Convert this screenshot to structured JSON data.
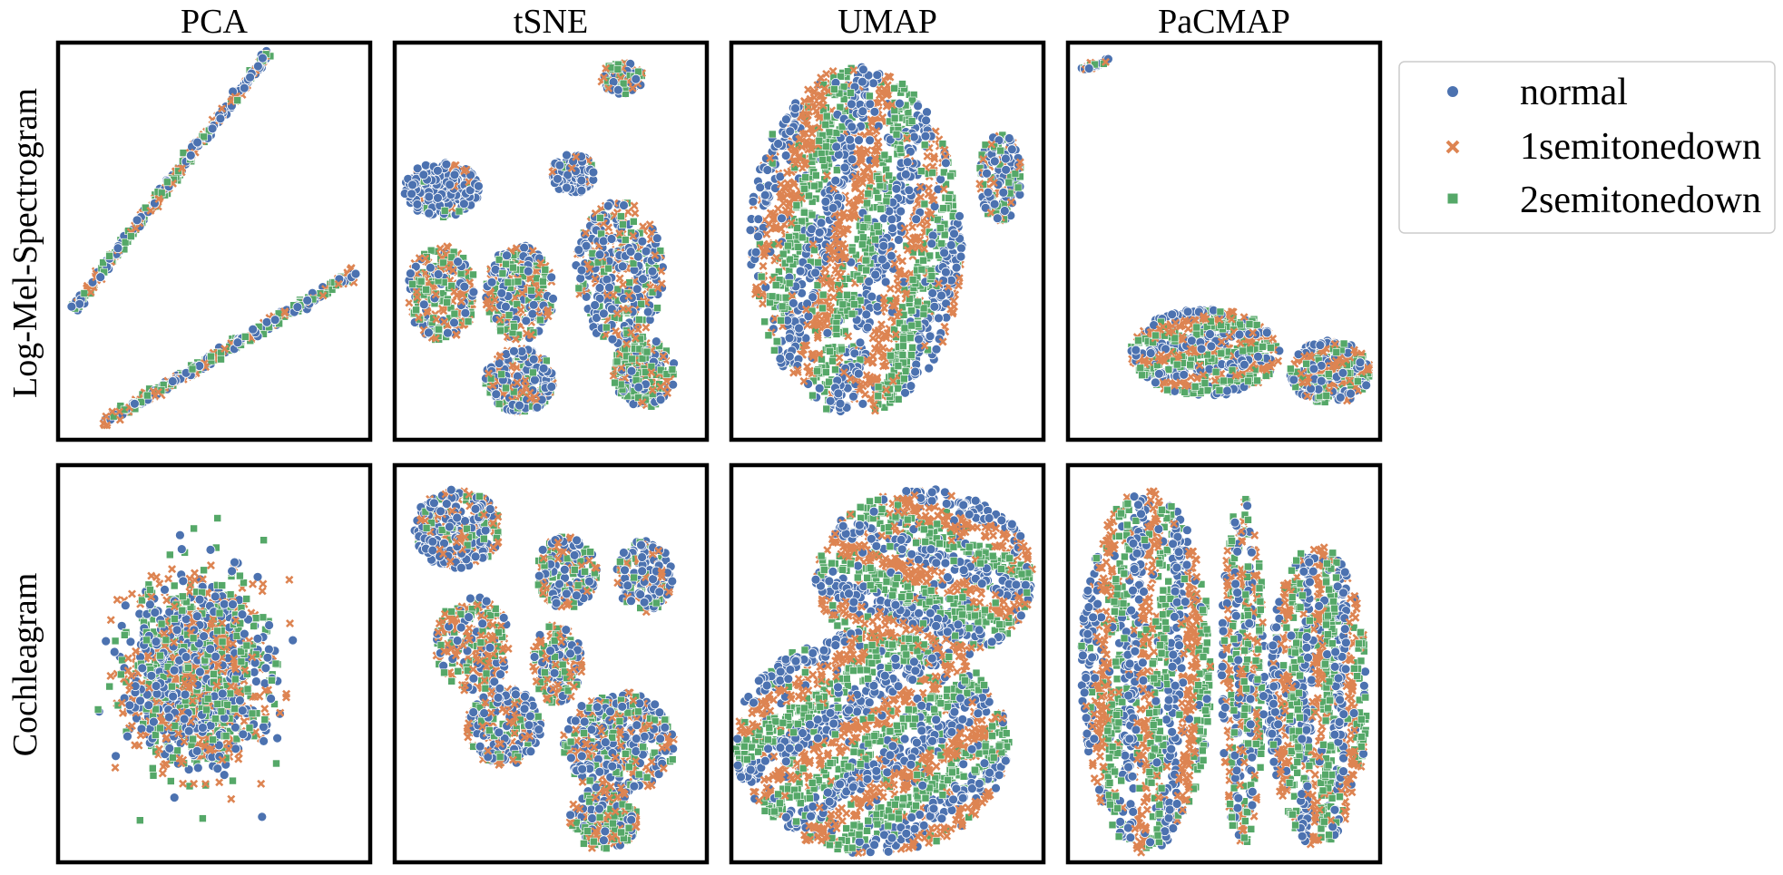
{
  "chart_data": {
    "type": "scatter",
    "column_titles": [
      "PCA",
      "tSNE",
      "UMAP",
      "PaCMAP"
    ],
    "row_labels": [
      "Log-Mel-Spectrogram",
      "Cochleagram"
    ],
    "grid": false,
    "axes_ticks": false,
    "legend": {
      "placement": "right-top",
      "entries": [
        {
          "name": "normal",
          "marker": "circle",
          "color": "#4c72b0"
        },
        {
          "name": "1semitonedown",
          "marker": "x",
          "color": "#dd8452"
        },
        {
          "name": "2semitonedown",
          "marker": "square",
          "color": "#55a868"
        }
      ]
    },
    "panels": [
      {
        "row": 0,
        "col": 0,
        "method": "PCA",
        "input": "Log-Mel-Spectrogram",
        "clusters": [
          {
            "shape": "line",
            "from": [
              0.05,
              0.67
            ],
            "to": [
              0.67,
              0.03
            ],
            "width": 0.012,
            "n": 380,
            "mix": [
              0.33,
              0.33,
              0.34
            ]
          },
          {
            "shape": "line",
            "from": [
              0.14,
              0.96
            ],
            "to": [
              0.95,
              0.58
            ],
            "width": 0.012,
            "n": 420,
            "mix": [
              0.33,
              0.33,
              0.34
            ]
          }
        ]
      },
      {
        "row": 0,
        "col": 1,
        "method": "tSNE",
        "input": "Log-Mel-Spectrogram",
        "clusters": [
          {
            "shape": "blob",
            "c": [
              0.73,
              0.09
            ],
            "r": [
              0.07,
              0.04
            ],
            "n": 120,
            "mix": [
              0.35,
              0.35,
              0.3
            ]
          },
          {
            "shape": "blob",
            "c": [
              0.15,
              0.37
            ],
            "r": [
              0.12,
              0.07
            ],
            "n": 300,
            "mix": [
              0.88,
              0.07,
              0.05
            ]
          },
          {
            "shape": "blob",
            "c": [
              0.57,
              0.33
            ],
            "r": [
              0.07,
              0.05
            ],
            "n": 120,
            "mix": [
              0.85,
              0.1,
              0.05
            ]
          },
          {
            "shape": "blob",
            "c": [
              0.15,
              0.63
            ],
            "r": [
              0.11,
              0.12
            ],
            "n": 280,
            "mix": [
              0.2,
              0.45,
              0.35
            ]
          },
          {
            "shape": "blob",
            "c": [
              0.4,
              0.63
            ],
            "r": [
              0.11,
              0.12
            ],
            "n": 320,
            "mix": [
              0.35,
              0.35,
              0.3
            ]
          },
          {
            "shape": "blob",
            "c": [
              0.4,
              0.85
            ],
            "r": [
              0.11,
              0.08
            ],
            "n": 240,
            "mix": [
              0.55,
              0.25,
              0.2
            ]
          },
          {
            "shape": "blob",
            "c": [
              0.72,
              0.58
            ],
            "r": [
              0.14,
              0.18
            ],
            "n": 380,
            "mix": [
              0.45,
              0.3,
              0.25
            ]
          },
          {
            "shape": "blob",
            "c": [
              0.8,
              0.83
            ],
            "r": [
              0.1,
              0.09
            ],
            "n": 240,
            "mix": [
              0.25,
              0.3,
              0.45
            ]
          }
        ]
      },
      {
        "row": 0,
        "col": 2,
        "method": "UMAP",
        "input": "Log-Mel-Spectrogram",
        "clusters": [
          {
            "shape": "bands",
            "c": [
              0.4,
              0.5
            ],
            "r": [
              0.34,
              0.44
            ],
            "n": 1900,
            "angle": 0.45,
            "freq": 3.4,
            "mix": [
              0.34,
              0.33,
              0.33
            ]
          },
          {
            "shape": "blob",
            "c": [
              0.86,
              0.34
            ],
            "r": [
              0.07,
              0.11
            ],
            "n": 160,
            "mix": [
              0.4,
              0.3,
              0.3
            ]
          }
        ]
      },
      {
        "row": 0,
        "col": 3,
        "method": "PaCMAP",
        "input": "Log-Mel-Spectrogram",
        "clusters": [
          {
            "shape": "line",
            "from": [
              0.05,
              0.07
            ],
            "to": [
              0.12,
              0.045
            ],
            "width": 0.008,
            "n": 30,
            "mix": [
              0.4,
              0.3,
              0.3
            ]
          },
          {
            "shape": "bands",
            "c": [
              0.44,
              0.78
            ],
            "r": [
              0.24,
              0.11
            ],
            "n": 620,
            "angle": 1.25,
            "freq": 3.2,
            "mix": [
              0.34,
              0.33,
              0.33
            ]
          },
          {
            "shape": "bands",
            "c": [
              0.84,
              0.83
            ],
            "r": [
              0.13,
              0.08
            ],
            "n": 340,
            "angle": 1.0,
            "freq": 3.6,
            "mix": [
              0.34,
              0.33,
              0.33
            ]
          }
        ]
      },
      {
        "row": 1,
        "col": 0,
        "method": "PCA",
        "input": "Cochleagram",
        "clusters": [
          {
            "shape": "gauss",
            "c": [
              0.44,
              0.52
            ],
            "r": [
              0.19,
              0.2
            ],
            "n": 1700,
            "mix": [
              0.34,
              0.33,
              0.33
            ]
          }
        ]
      },
      {
        "row": 1,
        "col": 1,
        "method": "tSNE",
        "input": "Cochleagram",
        "clusters": [
          {
            "shape": "blob",
            "c": [
              0.2,
              0.16
            ],
            "r": [
              0.14,
              0.1
            ],
            "n": 320,
            "mix": [
              0.6,
              0.25,
              0.15
            ]
          },
          {
            "shape": "blob",
            "c": [
              0.55,
              0.27
            ],
            "r": [
              0.1,
              0.09
            ],
            "n": 200,
            "mix": [
              0.35,
              0.3,
              0.35
            ]
          },
          {
            "shape": "blob",
            "c": [
              0.8,
              0.28
            ],
            "r": [
              0.09,
              0.09
            ],
            "n": 170,
            "mix": [
              0.5,
              0.3,
              0.2
            ]
          },
          {
            "shape": "blob",
            "c": [
              0.25,
              0.45
            ],
            "r": [
              0.12,
              0.12
            ],
            "n": 260,
            "mix": [
              0.2,
              0.45,
              0.35
            ]
          },
          {
            "shape": "blob",
            "c": [
              0.52,
              0.5
            ],
            "r": [
              0.08,
              0.1
            ],
            "n": 170,
            "mix": [
              0.3,
              0.4,
              0.3
            ]
          },
          {
            "shape": "blob",
            "c": [
              0.35,
              0.66
            ],
            "r": [
              0.12,
              0.1
            ],
            "n": 240,
            "mix": [
              0.45,
              0.3,
              0.25
            ]
          },
          {
            "shape": "blob",
            "c": [
              0.72,
              0.7
            ],
            "r": [
              0.18,
              0.13
            ],
            "n": 420,
            "mix": [
              0.45,
              0.3,
              0.25
            ]
          },
          {
            "shape": "blob",
            "c": [
              0.67,
              0.89
            ],
            "r": [
              0.11,
              0.08
            ],
            "n": 200,
            "mix": [
              0.25,
              0.4,
              0.35
            ]
          }
        ]
      },
      {
        "row": 1,
        "col": 2,
        "method": "UMAP",
        "input": "Cochleagram",
        "clusters": [
          {
            "shape": "bands",
            "c": [
              0.62,
              0.28
            ],
            "r": [
              0.35,
              0.22
            ],
            "n": 1100,
            "angle": 2.0,
            "freq": 3.0,
            "mix": [
              0.34,
              0.33,
              0.33
            ]
          },
          {
            "shape": "bands",
            "c": [
              0.45,
              0.7
            ],
            "r": [
              0.44,
              0.28
            ],
            "n": 1700,
            "angle": 0.9,
            "freq": 3.6,
            "mix": [
              0.36,
              0.32,
              0.32
            ]
          }
        ]
      },
      {
        "row": 1,
        "col": 3,
        "method": "PaCMAP",
        "input": "Cochleagram",
        "clusters": [
          {
            "shape": "bands",
            "c": [
              0.25,
              0.52
            ],
            "r": [
              0.21,
              0.46
            ],
            "n": 1250,
            "angle": 0.12,
            "freq": 3.0,
            "mix": [
              0.36,
              0.32,
              0.32
            ]
          },
          {
            "shape": "bands",
            "c": [
              0.56,
              0.52
            ],
            "r": [
              0.07,
              0.44
            ],
            "n": 420,
            "angle": 0.0,
            "freq": 3.2,
            "mix": [
              0.3,
              0.4,
              0.3
            ]
          },
          {
            "shape": "bands",
            "c": [
              0.8,
              0.58
            ],
            "r": [
              0.16,
              0.38
            ],
            "n": 900,
            "angle": 0.05,
            "freq": 3.0,
            "mix": [
              0.4,
              0.3,
              0.3
            ]
          }
        ]
      }
    ]
  }
}
